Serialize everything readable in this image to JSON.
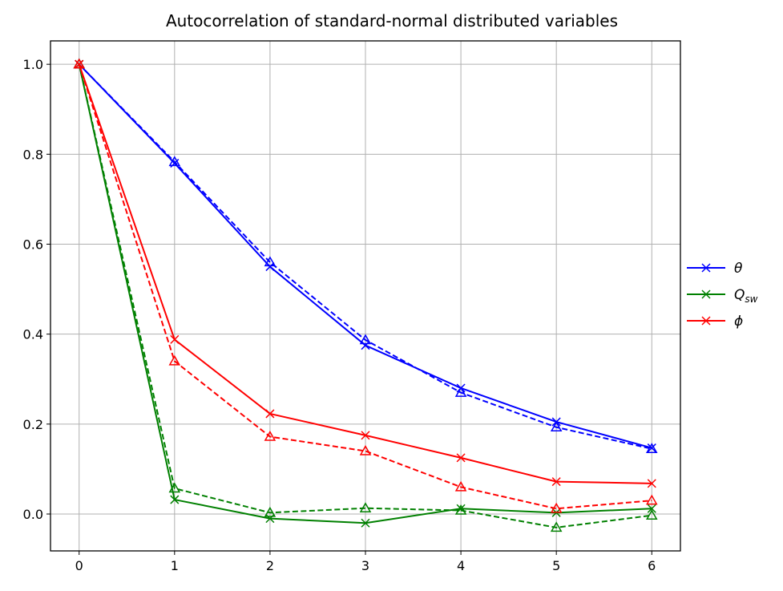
{
  "chart_data": {
    "type": "line",
    "title": "Autocorrelation of standard-normal distributed variables",
    "xlabel": "",
    "ylabel": "",
    "x": [
      0,
      1,
      2,
      3,
      4,
      5,
      6
    ],
    "xlim": [
      -0.3,
      6.3
    ],
    "ylim": [
      -0.082,
      1.052
    ],
    "xticks": [
      "0",
      "1",
      "2",
      "3",
      "4",
      "5",
      "6"
    ],
    "yticks": [
      {
        "value": 0.0,
        "label": "0.0"
      },
      {
        "value": 0.2,
        "label": "0.2"
      },
      {
        "value": 0.4,
        "label": "0.4"
      },
      {
        "value": 0.6,
        "label": "0.6"
      },
      {
        "value": 0.8,
        "label": "0.8"
      },
      {
        "value": 1.0,
        "label": "1.0"
      }
    ],
    "grid": true,
    "legend_position": "right-outside",
    "series": [
      {
        "name": "θ",
        "legend_main": "θ",
        "legend_sub": "",
        "in_legend": true,
        "color": "#0000ff",
        "style": "solid",
        "marker": "x",
        "values": [
          1.0,
          0.78,
          0.55,
          0.375,
          0.28,
          0.205,
          0.147
        ]
      },
      {
        "name": "θ",
        "legend_main": "",
        "legend_sub": "",
        "in_legend": false,
        "color": "#0000ff",
        "style": "dashed",
        "marker": "triangle",
        "values": [
          1.0,
          0.783,
          0.56,
          0.387,
          0.27,
          0.193,
          0.145
        ]
      },
      {
        "name": "Qsw",
        "legend_main": "Q",
        "legend_sub": "sw",
        "in_legend": true,
        "color": "#008000",
        "style": "solid",
        "marker": "x",
        "values": [
          1.0,
          0.032,
          -0.01,
          -0.02,
          0.012,
          0.003,
          0.012
        ]
      },
      {
        "name": "Qsw",
        "legend_main": "",
        "legend_sub": "",
        "in_legend": false,
        "color": "#008000",
        "style": "dashed",
        "marker": "triangle",
        "values": [
          1.0,
          0.057,
          0.003,
          0.013,
          0.008,
          -0.03,
          -0.003
        ]
      },
      {
        "name": "ϕ",
        "legend_main": "ϕ",
        "legend_sub": "",
        "in_legend": true,
        "color": "#ff0000",
        "style": "solid",
        "marker": "x",
        "values": [
          1.0,
          0.388,
          0.223,
          0.175,
          0.125,
          0.072,
          0.068
        ]
      },
      {
        "name": "ϕ",
        "legend_main": "",
        "legend_sub": "",
        "in_legend": false,
        "color": "#ff0000",
        "style": "dashed",
        "marker": "triangle",
        "values": [
          1.0,
          0.34,
          0.172,
          0.14,
          0.06,
          0.012,
          0.03
        ]
      }
    ]
  }
}
